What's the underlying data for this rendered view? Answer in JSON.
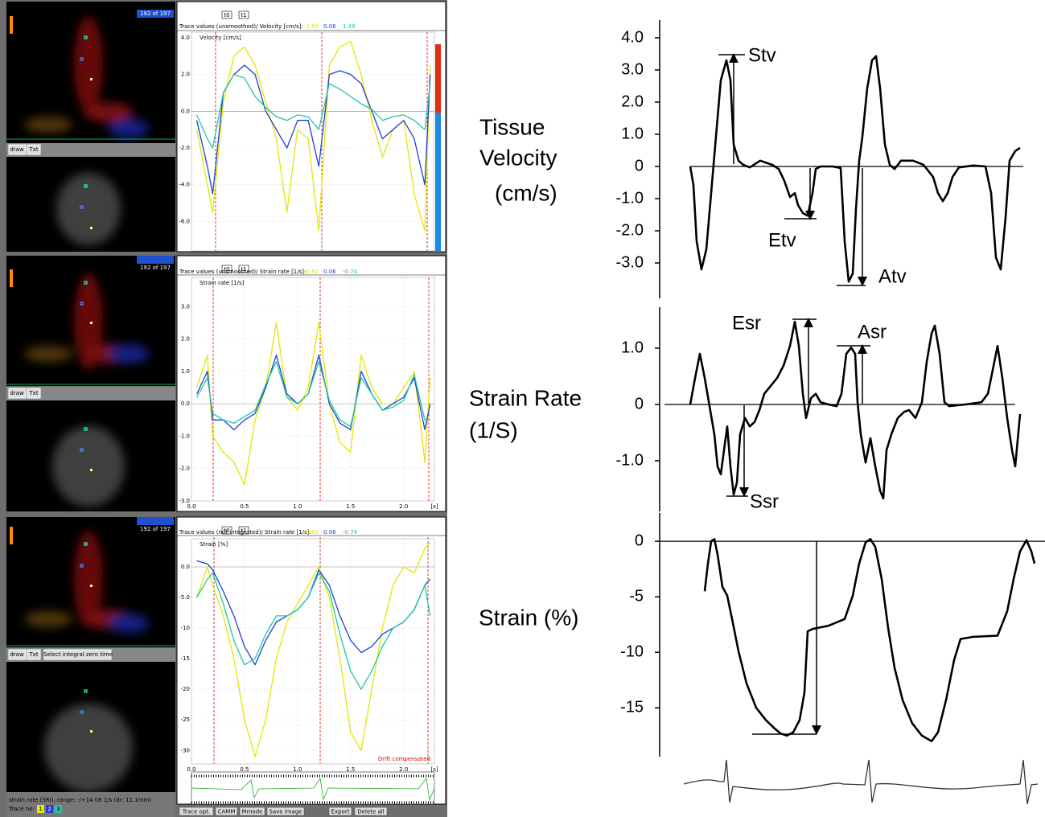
{
  "chart_data": [
    {
      "type": "line",
      "title": "Trace values (unsmoothed)/ Velocity [cm/s]:",
      "ylabel": "Velocity [cm/s]",
      "readouts": [
        -1.69,
        0.06,
        1.48
      ],
      "x": [
        0.05,
        0.15,
        0.2,
        0.3,
        0.4,
        0.5,
        0.6,
        0.7,
        0.8,
        0.9,
        1.0,
        1.1,
        1.2,
        1.3,
        1.4,
        1.5,
        1.6,
        1.7,
        1.8,
        1.9,
        2.0,
        2.1,
        2.2,
        2.25
      ],
      "xlim": [
        0,
        2.29
      ],
      "ylim": [
        -7.6,
        4.3
      ],
      "yticks": [
        {
          "value": 4,
          "label": "4.0"
        },
        {
          "value": 2,
          "label": "2.0"
        },
        {
          "value": 0,
          "label": "0.0"
        },
        {
          "value": -2,
          "label": "-2.0"
        },
        {
          "value": -4,
          "label": "-4.0"
        },
        {
          "value": -6,
          "label": "-6.0"
        }
      ],
      "series": [
        {
          "color": "#e6e600",
          "values": [
            -1,
            -4,
            -5.5,
            0.5,
            3,
            3.5,
            2.5,
            0.5,
            -1.5,
            -5.5,
            -1,
            -1.5,
            -6.5,
            2.5,
            3.5,
            3.8,
            2,
            -0.5,
            -2.5,
            -1,
            -0.5,
            -4.5,
            -6.5,
            2.5
          ]
        },
        {
          "color": "#1f3fd6",
          "values": [
            -0.5,
            -3,
            -4.5,
            1,
            2,
            2.5,
            2,
            0,
            -1,
            -2,
            -0.5,
            -0.5,
            -3,
            2,
            2.2,
            2,
            1.5,
            0,
            -1.5,
            -1,
            -0.5,
            -1.5,
            -4,
            2
          ]
        },
        {
          "color": "#1fc7a3",
          "values": [
            -0.2,
            -1.5,
            -2,
            1,
            2,
            1.8,
            0.8,
            0.2,
            -0.3,
            -0.5,
            -0.2,
            -0.3,
            -1,
            1.5,
            1.2,
            0.8,
            0.4,
            0.1,
            -0.5,
            -0.3,
            -0.2,
            -0.5,
            -1,
            1.5
          ]
        }
      ]
    },
    {
      "type": "line",
      "title": "Trace values (unsmoothed)/ Strain rate [1/s]:",
      "ylabel": "Strain rate [1/s]",
      "readouts": [
        -0.62,
        0.06,
        -0.74
      ],
      "xunit": "[s]",
      "x": [
        0.05,
        0.15,
        0.2,
        0.3,
        0.4,
        0.5,
        0.6,
        0.7,
        0.8,
        0.9,
        1.0,
        1.1,
        1.2,
        1.3,
        1.4,
        1.5,
        1.6,
        1.7,
        1.8,
        1.9,
        2.0,
        2.1,
        2.2,
        2.25
      ],
      "xlim": [
        0,
        2.29
      ],
      "ylim": [
        -3.0,
        3.9
      ],
      "xticks": [
        {
          "value": 0,
          "label": "0.0"
        },
        0.5,
        {
          "value": 1,
          "label": "1.0"
        },
        1.5,
        {
          "value": 2,
          "label": "2.0"
        }
      ],
      "yticks": [
        {
          "value": 3,
          "label": "3.0"
        },
        {
          "value": 2,
          "label": "2.0"
        },
        {
          "value": 1,
          "label": "1.0"
        },
        {
          "value": 0,
          "label": "0.0"
        },
        {
          "value": -1,
          "label": "-1.0"
        },
        {
          "value": -2,
          "label": "-2.0"
        },
        {
          "value": -3,
          "label": "-3.0"
        }
      ],
      "series": [
        {
          "color": "#e6e600",
          "values": [
            0.5,
            1.5,
            -1,
            -1.5,
            -1.8,
            -2.5,
            -0.5,
            0.5,
            2.5,
            0.2,
            -0.2,
            0.5,
            2.5,
            0,
            -1.2,
            -1.5,
            1.5,
            0.5,
            0,
            0,
            0.5,
            1,
            -1.8,
            0.8
          ]
        },
        {
          "color": "#1f3fd6",
          "values": [
            0.3,
            1,
            -0.5,
            -0.5,
            -0.8,
            -0.5,
            -0.3,
            0.5,
            1.5,
            0.3,
            0,
            0.3,
            1.5,
            0,
            -0.6,
            -0.8,
            1,
            0.3,
            -0.2,
            0,
            0.2,
            0.8,
            -0.8,
            0
          ]
        },
        {
          "color": "#1fc7a3",
          "values": [
            0.2,
            0.8,
            -0.3,
            -0.5,
            -0.6,
            -0.4,
            -0.2,
            0.6,
            1.3,
            0.2,
            0,
            0.3,
            1.3,
            0.1,
            -0.5,
            -0.7,
            0.8,
            0.3,
            -0.2,
            -0.1,
            0.1,
            0.9,
            -0.5,
            -0.5
          ]
        }
      ]
    },
    {
      "type": "line",
      "title": "Trace values (not integrated)/ Strain rate [1/s]:",
      "ylabel": "Strain [%]",
      "readouts": [
        -0.62,
        0.06,
        -0.74
      ],
      "xunit": "[s]",
      "annotation": "Drift compensated",
      "x": [
        0.05,
        0.15,
        0.2,
        0.3,
        0.4,
        0.5,
        0.6,
        0.7,
        0.8,
        0.9,
        1.0,
        1.1,
        1.2,
        1.3,
        1.4,
        1.5,
        1.6,
        1.7,
        1.8,
        1.9,
        2.0,
        2.1,
        2.2,
        2.25
      ],
      "xlim": [
        0,
        2.29
      ],
      "ylim": [
        -32.2,
        4.6
      ],
      "xticks": [
        {
          "value": 0,
          "label": "0.0"
        },
        0.5,
        {
          "value": 1,
          "label": "1.0"
        },
        1.5,
        {
          "value": 2,
          "label": "2.0"
        }
      ],
      "yticks": [
        {
          "value": 0,
          "label": "0.0"
        },
        {
          "value": -5,
          "label": "-5.0"
        },
        {
          "value": -10,
          "label": "-10"
        },
        {
          "value": -15,
          "label": "-15"
        },
        {
          "value": -20,
          "label": "-20"
        },
        {
          "value": -25,
          "label": "-25"
        },
        {
          "value": -30,
          "label": "-30"
        }
      ],
      "series": [
        {
          "color": "#e6e600",
          "values": [
            -5,
            0,
            -3,
            -8,
            -15,
            -25,
            -31,
            -25,
            -15,
            -9,
            -6,
            -3,
            0,
            -5,
            -15,
            -27,
            -30,
            -20,
            -10,
            -3,
            0,
            -1,
            3,
            4
          ]
        },
        {
          "color": "#1f3fd6",
          "values": [
            1,
            0.5,
            -0.5,
            -4,
            -8,
            -13,
            -16,
            -12,
            -9,
            -8,
            -7,
            -5,
            -0.5,
            -3,
            -8,
            -12,
            -14,
            -13,
            -11,
            -10,
            -9,
            -7,
            -3,
            -2
          ]
        },
        {
          "color": "#1fc7a3",
          "values": [
            -5,
            -2,
            -1,
            -6,
            -12,
            -16,
            -15,
            -11,
            -8,
            -8,
            -7,
            -5,
            -1,
            -4,
            -11,
            -17,
            -20,
            -17,
            -13,
            -10,
            -9,
            -7,
            -3,
            -8
          ]
        }
      ]
    },
    {
      "type": "line",
      "ylabel": [
        "Tissue",
        "Velocity",
        "(cm/s)"
      ],
      "annotations": [
        "Stv",
        "Etv",
        "Atv"
      ],
      "xlim": [
        0,
        440
      ],
      "ylim": [
        -4.1,
        4.5
      ],
      "yticks": [
        {
          "value": 4,
          "label": "4.0"
        },
        {
          "value": 3,
          "label": "3.0"
        },
        {
          "value": 2,
          "label": "2.0"
        },
        {
          "value": 1,
          "label": "1.0"
        },
        0,
        {
          "value": -1,
          "label": "-1.0"
        },
        {
          "value": -2,
          "label": "-2.0"
        },
        {
          "value": -3,
          "label": "-3.0"
        }
      ],
      "x": [
        8,
        12,
        16,
        22,
        28,
        34,
        40,
        46,
        53,
        58,
        62,
        68,
        74,
        82,
        95,
        110,
        118,
        125,
        132,
        138,
        142,
        148,
        154,
        160,
        164,
        170,
        185,
        195,
        200,
        205,
        210,
        214,
        218,
        222,
        228,
        234,
        239,
        244,
        250,
        256,
        262,
        270,
        285,
        298,
        310,
        316,
        322,
        328,
        334,
        342,
        360,
        375,
        382,
        388,
        394,
        400,
        405,
        412,
        418
      ],
      "series": [
        {
          "color": "#000000",
          "values": [
            0,
            -0.58,
            -2.33,
            -3.2,
            -2.58,
            -0.83,
            0.93,
            2.68,
            3.3,
            2.68,
            0.68,
            0.18,
            0.05,
            -0.03,
            0.18,
            0.05,
            -0.08,
            -0.45,
            -0.95,
            -0.83,
            -1.2,
            -1.45,
            -1.53,
            -0.83,
            -0.08,
            0,
            0,
            -0.05,
            -2.33,
            -3.58,
            -3.33,
            -1.33,
            0.18,
            0.93,
            2.43,
            3.3,
            3.43,
            2.43,
            0.68,
            0.05,
            -0.08,
            0.18,
            0.18,
            0.05,
            -0.33,
            -0.83,
            -1.08,
            -0.83,
            -0.33,
            -0.03,
            0.03,
            0,
            -0.83,
            -2.83,
            -3.2,
            -1.58,
            0.18,
            0.48,
            0.58
          ]
        }
      ]
    },
    {
      "type": "line",
      "ylabel": [
        "Strain Rate",
        "(1/S)"
      ],
      "annotations": [
        "Esr",
        "Asr",
        "Ssr"
      ],
      "xlim": [
        0,
        440
      ],
      "ylim": [
        -1.9,
        1.7
      ],
      "yticks": [
        {
          "value": 1,
          "label": "1.0"
        },
        0,
        {
          "value": -1,
          "label": "-1.0"
        }
      ],
      "x": [
        8,
        14,
        20,
        26,
        32,
        38,
        42,
        46,
        50,
        54,
        58,
        62,
        66,
        70,
        76,
        82,
        88,
        94,
        100,
        108,
        116,
        124,
        132,
        138,
        143,
        148,
        152,
        158,
        164,
        170,
        180,
        190,
        196,
        202,
        208,
        213,
        216,
        220,
        226,
        232,
        238,
        244,
        248,
        252,
        258,
        266,
        274,
        280,
        288,
        296,
        302,
        308,
        312,
        318,
        324,
        330,
        350,
        370,
        378,
        384,
        390,
        396,
        402,
        408,
        412,
        418
      ],
      "series": [
        {
          "color": "#000000",
          "values": [
            0,
            0.47,
            0.9,
            0.47,
            -0.03,
            -0.53,
            -1.1,
            -1.24,
            -0.81,
            -0.39,
            -1.1,
            -1.6,
            -1.39,
            -0.53,
            -0.24,
            -0.39,
            -0.31,
            -0.1,
            0.19,
            0.33,
            0.47,
            0.69,
            1.04,
            1.47,
            1.04,
            0.19,
            -0.24,
            0.11,
            0.19,
            0.04,
            0,
            -0.03,
            0.19,
            0.9,
            1.01,
            0.9,
            0.04,
            -0.53,
            -1.03,
            -0.6,
            -1.1,
            -1.53,
            -1.67,
            -0.81,
            -0.53,
            -0.24,
            -0.13,
            -0.1,
            -0.24,
            0.04,
            0.76,
            1.26,
            1.4,
            0.9,
            0.04,
            -0.03,
            0,
            0.04,
            0.19,
            0.61,
            1.04,
            0.47,
            -0.24,
            -0.81,
            -1.1,
            -0.17
          ]
        }
      ]
    },
    {
      "type": "line",
      "ylabel": [
        "Strain (%)"
      ],
      "xlim": [
        0,
        440
      ],
      "ylim": [
        -19.4,
        2.4
      ],
      "yticks": [
        0,
        -5,
        -10,
        -15
      ],
      "x": [
        26,
        30,
        34,
        38,
        42,
        48,
        54,
        60,
        68,
        78,
        90,
        102,
        112,
        120,
        128,
        136,
        144,
        150,
        154,
        160,
        180,
        200,
        210,
        218,
        226,
        232,
        238,
        246,
        254,
        262,
        272,
        284,
        296,
        308,
        316,
        326,
        336,
        344,
        360,
        390,
        402,
        410,
        418,
        426,
        432,
        436
      ],
      "series": [
        {
          "color": "#000000",
          "values": [
            -4.5,
            -2.0,
            0,
            0.2,
            -1.2,
            -4.1,
            -4.9,
            -7.0,
            -9.9,
            -12.8,
            -15.0,
            -16.1,
            -16.8,
            -17.3,
            -17.5,
            -17.2,
            -16.1,
            -13.6,
            -8.1,
            -7.9,
            -7.6,
            -7.0,
            -4.9,
            -2.0,
            -0.1,
            0.2,
            -0.5,
            -3.4,
            -7.8,
            -11.4,
            -14.3,
            -16.4,
            -17.5,
            -18.0,
            -17.2,
            -14.3,
            -10.7,
            -8.8,
            -8.6,
            -8.5,
            -6.3,
            -3.4,
            -0.9,
            0.1,
            -0.9,
            -2.0
          ]
        }
      ]
    }
  ],
  "ui": {
    "panels": [
      {
        "frame": "192 of 197",
        "draw": "draw",
        "txt": "Txt",
        "t0": "t0",
        "t1": "t1"
      },
      {
        "frame": "192 of 197",
        "draw": "draw",
        "txt": "Txt",
        "t0": "t0",
        "t1": "t1"
      },
      {
        "frame": "192 of 197",
        "draw": "draw",
        "txt": "Txt",
        "t0": "t0",
        "t1": "t1",
        "extra": "Select integral zero time"
      }
    ],
    "footer": "strain rate (SRI), range: -/+14.06 1/s (dr: 11.1mm)",
    "trace_label": "Trace no:",
    "trace_numbers": [
      "1",
      "2",
      "3"
    ],
    "buttons": [
      "Trace opt.",
      "CAMM",
      "Mmode",
      "Save image",
      "Export",
      "Delete all"
    ]
  }
}
